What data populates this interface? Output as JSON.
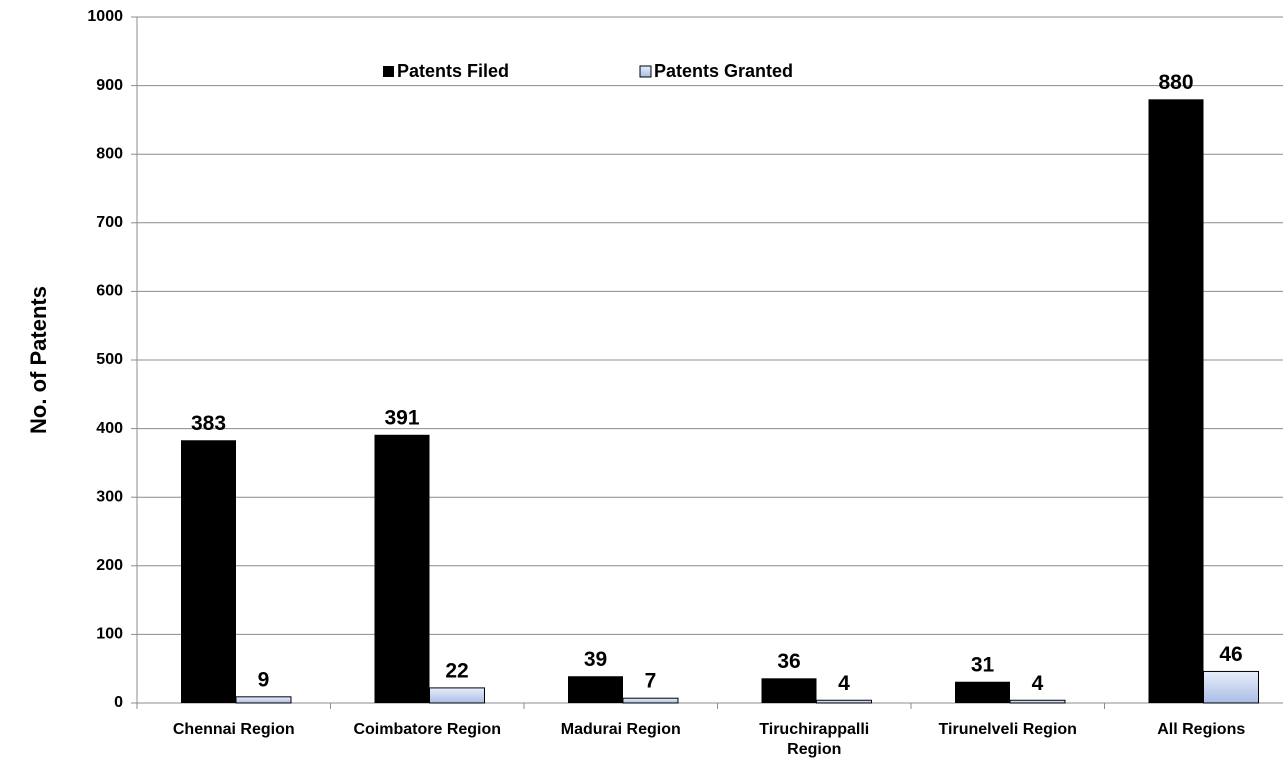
{
  "chart_data": {
    "type": "bar",
    "y_label": "No. of Patents",
    "categories": [
      "Chennai Region",
      "Coimbatore Region",
      "Madurai Region",
      "Tiruchirappalli Region",
      "Tirunelveli Region",
      "All Regions"
    ],
    "series": [
      {
        "name": "Patents Filed",
        "color": "#000000",
        "values": [
          383,
          391,
          39,
          36,
          31,
          880
        ]
      },
      {
        "name": "Patents Granted",
        "color": "#b8c9ec",
        "values": [
          9,
          22,
          7,
          4,
          4,
          46
        ]
      }
    ],
    "ylim": [
      0,
      1000
    ],
    "yticks": [
      0,
      100,
      200,
      300,
      400,
      500,
      600,
      700,
      800,
      900,
      1000
    ],
    "grid": true,
    "legend": "top"
  }
}
